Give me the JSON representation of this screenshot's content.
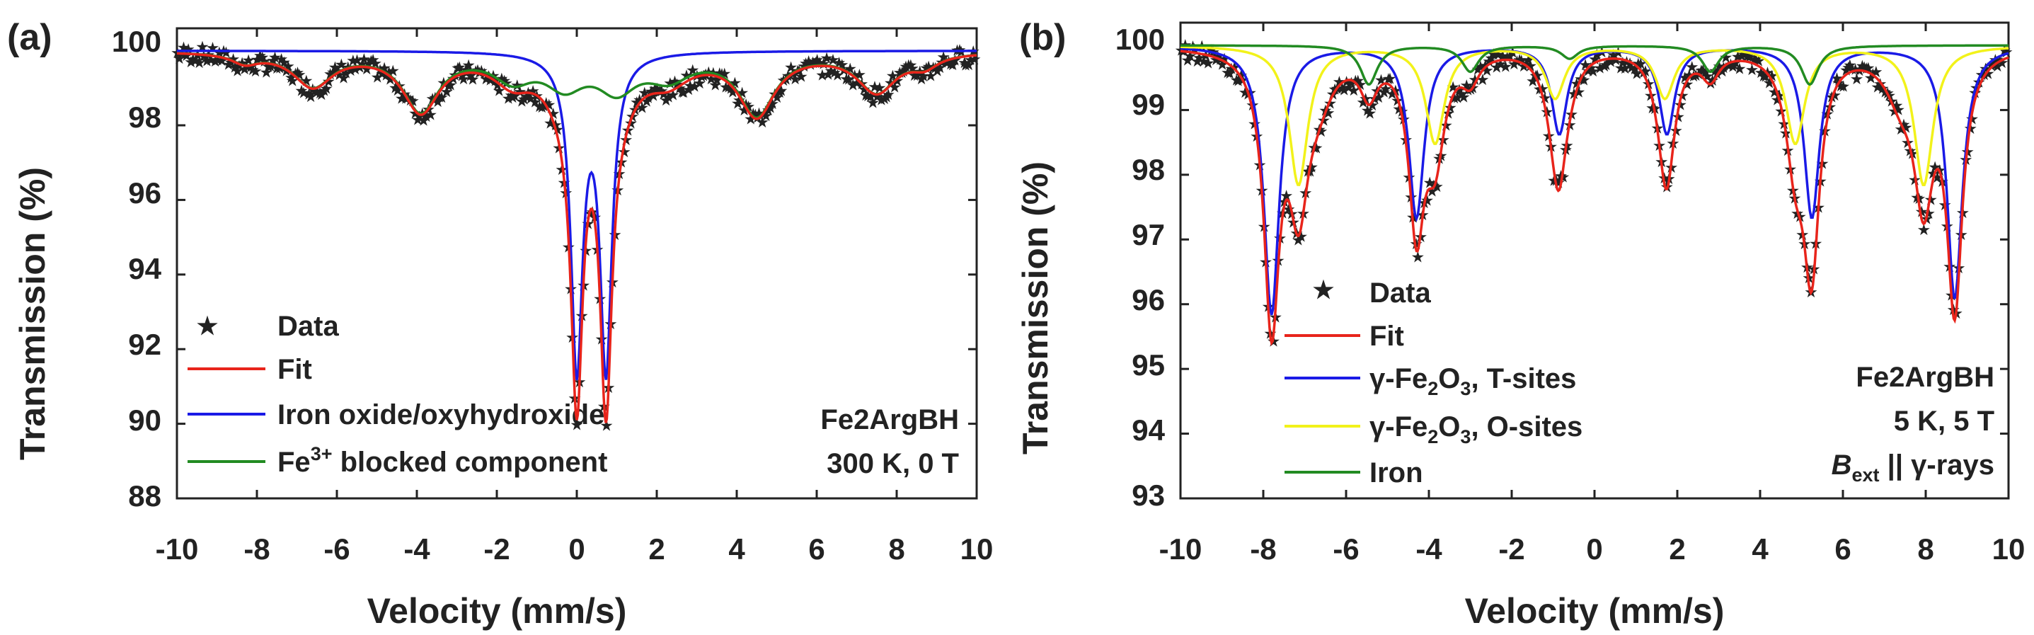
{
  "colors": {
    "fit": "#e8241b",
    "t_sites": "#1a1ae6",
    "o_sites": "#f2f21a",
    "iron": "#228b22",
    "blocked": "#228b22",
    "oxide": "#1a1ae6",
    "data": "#111111"
  },
  "chart_data": [
    {
      "type": "line",
      "panel_label": "(a)",
      "xlabel": "Velocity (mm/s)",
      "ylabel": "Transmission (%)",
      "xlim": [
        -10,
        10
      ],
      "ylim": [
        88,
        100.6
      ],
      "xticks": [
        "-10",
        "-8",
        "-6",
        "-4",
        "-2",
        "0",
        "2",
        "4",
        "6",
        "8",
        "10"
      ],
      "yticks": [
        "88",
        "90",
        "92",
        "94",
        "96",
        "98",
        "100"
      ],
      "annotation": {
        "sample": "Fe2ArgBH",
        "conditions": "300 K, 0 T"
      },
      "legend": {
        "data": "Data",
        "fit": "Fit",
        "oxide": "Iron oxide/oxyhydroxide",
        "blocked_pre": "Fe",
        "blocked_sup": "3+",
        "blocked_post": " blocked component"
      },
      "series": [
        {
          "name": "Iron oxide/oxyhydroxide",
          "baseline": 100,
          "lines": [
            {
              "pos": 0.0,
              "depth": 8.35,
              "width": 0.36
            },
            {
              "pos": 0.73,
              "depth": 8.35,
              "width": 0.36
            }
          ]
        },
        {
          "name": "Fe3+ blocked component",
          "baseline": 100,
          "lines": [
            {
              "pos": -8.3,
              "depth": 0.25,
              "width": 0.8
            },
            {
              "pos": -6.6,
              "depth": 0.9,
              "width": 1.2
            },
            {
              "pos": -3.9,
              "depth": 1.55,
              "width": 1.1
            },
            {
              "pos": -1.6,
              "depth": 0.65,
              "width": 1.2
            },
            {
              "pos": -0.3,
              "depth": 0.8,
              "width": 1.2
            },
            {
              "pos": 1.0,
              "depth": 0.9,
              "width": 1.2
            },
            {
              "pos": 2.3,
              "depth": 0.6,
              "width": 1.3
            },
            {
              "pos": 4.5,
              "depth": 1.65,
              "width": 1.1
            },
            {
              "pos": 7.5,
              "depth": 1.05,
              "width": 1.2
            },
            {
              "pos": 8.7,
              "depth": 0.3,
              "width": 0.8
            }
          ]
        }
      ]
    },
    {
      "type": "line",
      "panel_label": "(b)",
      "xlabel": "Velocity (mm/s)",
      "ylabel": "Transmission (%)",
      "xlim": [
        -10,
        10
      ],
      "ylim": [
        93,
        100.35
      ],
      "xticks": [
        "-10",
        "-8",
        "-6",
        "-4",
        "-2",
        "0",
        "2",
        "4",
        "6",
        "8",
        "10"
      ],
      "yticks": [
        "93",
        "94",
        "95",
        "96",
        "97",
        "98",
        "99",
        "100"
      ],
      "annotation": {
        "sample": "Fe2ArgBH",
        "conditions": "5 K, 5 T",
        "field_b": "B",
        "field_sub": "ext",
        "field_rest": " || γ-rays"
      },
      "legend": {
        "data": "Data",
        "fit": "Fit",
        "t_pre": "γ-Fe",
        "t_sub1": "2",
        "t_mid": "O",
        "t_sub2": "3",
        "t_post": ", T-sites",
        "o_pre": "γ-Fe",
        "o_sub1": "2",
        "o_mid": "O",
        "o_sub2": "3",
        "o_post": ", O-sites",
        "iron": "Iron"
      },
      "series": [
        {
          "name": "γ-Fe2O3, T-sites",
          "baseline": 100,
          "lines": [
            {
              "pos": -7.8,
              "depth": 4.15,
              "width": 0.45
            },
            {
              "pos": -4.3,
              "depth": 2.65,
              "width": 0.45
            },
            {
              "pos": -0.85,
              "depth": 1.35,
              "width": 0.45
            },
            {
              "pos": 1.75,
              "depth": 1.35,
              "width": 0.45
            },
            {
              "pos": 5.25,
              "depth": 2.65,
              "width": 0.45
            },
            {
              "pos": 8.7,
              "depth": 3.9,
              "width": 0.45
            }
          ]
        },
        {
          "name": "γ-Fe2O3, O-sites",
          "baseline": 100,
          "lines": [
            {
              "pos": -7.15,
              "depth": 2.15,
              "width": 0.55
            },
            {
              "pos": -3.85,
              "depth": 1.5,
              "width": 0.55
            },
            {
              "pos": -0.95,
              "depth": 0.8,
              "width": 0.55
            },
            {
              "pos": 1.7,
              "depth": 0.8,
              "width": 0.55
            },
            {
              "pos": 4.85,
              "depth": 1.5,
              "width": 0.55
            },
            {
              "pos": 7.95,
              "depth": 2.15,
              "width": 0.55
            }
          ]
        },
        {
          "name": "Iron",
          "baseline": 100,
          "lines": [
            {
              "pos": -5.45,
              "depth": 0.6,
              "width": 0.5
            },
            {
              "pos": -3.0,
              "depth": 0.4,
              "width": 0.5
            },
            {
              "pos": -0.6,
              "depth": 0.2,
              "width": 0.5
            },
            {
              "pos": 2.8,
              "depth": 0.4,
              "width": 0.5
            },
            {
              "pos": 5.2,
              "depth": 0.6,
              "width": 0.5
            }
          ]
        }
      ],
      "fit_extra": [
        {
          "pos": -6.7,
          "depth": 0.6,
          "width": 0.9
        },
        {
          "pos": 7.4,
          "depth": 0.6,
          "width": 0.9
        }
      ]
    }
  ]
}
